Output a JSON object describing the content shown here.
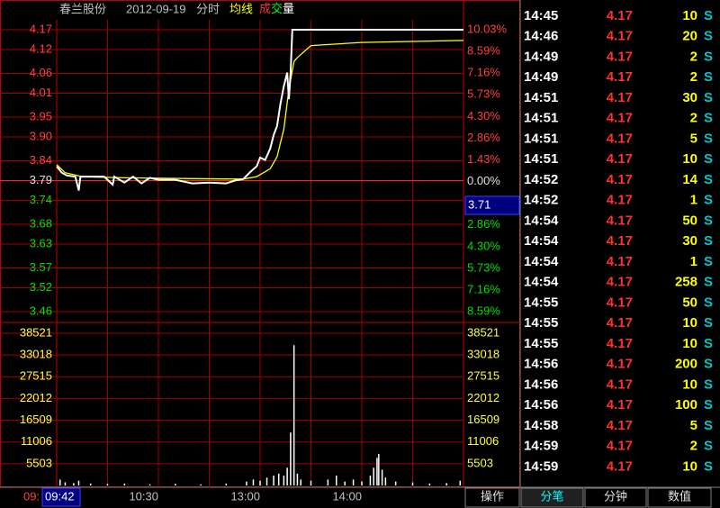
{
  "header": {
    "stock": "春兰股份",
    "date": "2012-09-19",
    "mode": "分时"
  },
  "chart_data": {
    "type": "intraday",
    "average": {
      "name": "均线",
      "color": "#ffff00",
      "x": [
        0,
        5,
        15,
        40,
        80,
        110,
        118,
        122,
        126,
        130,
        134,
        137,
        140,
        142,
        150,
        180,
        240
      ],
      "values": [
        3.83,
        3.81,
        3.8,
        3.797,
        3.795,
        3.794,
        3.8,
        3.81,
        3.82,
        3.85,
        3.92,
        4.02,
        4.09,
        4.1,
        4.13,
        4.138,
        4.143
      ]
    },
    "price": {
      "color": "#ffffff",
      "x": [
        0,
        3,
        6,
        11,
        13,
        14,
        20,
        28,
        33,
        34,
        40,
        45,
        50,
        55,
        60,
        70,
        80,
        90,
        100,
        105,
        110,
        115,
        118,
        120,
        123,
        126,
        128,
        130,
        132,
        134,
        136,
        137,
        138,
        139,
        240
      ],
      "values": [
        3.826,
        3.81,
        3.803,
        3.8,
        3.765,
        3.8,
        3.8,
        3.8,
        3.78,
        3.8,
        3.785,
        3.8,
        3.783,
        3.797,
        3.792,
        3.792,
        3.783,
        3.785,
        3.783,
        3.79,
        3.794,
        3.815,
        3.826,
        3.848,
        3.842,
        3.871,
        3.905,
        3.927,
        3.983,
        4.028,
        4.062,
        3.995,
        4.062,
        4.17,
        4.17
      ]
    },
    "volume_legend": [
      "成",
      "交",
      "量"
    ],
    "volume": {
      "color": "#ffffff",
      "x": [
        2,
        5,
        10,
        13,
        20,
        30,
        40,
        55,
        70,
        85,
        100,
        112,
        116,
        120,
        124,
        128,
        131,
        134,
        136,
        138,
        140,
        142,
        144,
        150,
        160,
        165,
        170,
        175,
        180,
        185,
        187,
        189,
        190,
        192,
        194,
        200,
        210,
        220,
        230,
        238
      ],
      "values": [
        1500,
        800,
        600,
        1200,
        500,
        400,
        500,
        300,
        400,
        300,
        500,
        1000,
        1500,
        1200,
        2000,
        2500,
        3000,
        2500,
        4500,
        13400,
        35500,
        3000,
        1500,
        1200,
        1500,
        2500,
        1000,
        1500,
        1000,
        2500,
        4500,
        7000,
        8000,
        4000,
        2000,
        1000,
        800,
        500,
        600,
        1200
      ]
    },
    "xlim": [
      0,
      240
    ],
    "xgrid": [
      30,
      60,
      90,
      120,
      150,
      180,
      210
    ],
    "xticks": [
      {
        "value": 0,
        "label": "09:"
      },
      {
        "value": 60,
        "label": "10:30"
      },
      {
        "value": 120,
        "label": "13:00"
      },
      {
        "value": 180,
        "label": "14:00"
      }
    ],
    "ylim": [
      3.46,
      4.17
    ],
    "yticks": [
      4.17,
      4.12,
      4.06,
      4.01,
      3.95,
      {
        "value": 3.9,
        "label": "3.90"
      },
      3.84,
      3.79,
      3.74,
      3.68,
      3.63,
      3.57,
      3.52,
      3.46
    ],
    "y2lim": [
      -8.59,
      10.03
    ],
    "y2ticks": [
      {
        "value": 10.03,
        "label": "10.03%"
      },
      {
        "value": 8.59,
        "label": "8.59%"
      },
      {
        "value": 7.16,
        "label": "7.16%"
      },
      {
        "value": 5.73,
        "label": "5.73%"
      },
      {
        "value": 4.3,
        "label": "4.30%"
      },
      {
        "value": 2.86,
        "label": "2.86%"
      },
      {
        "value": 1.43,
        "label": "1.43%"
      },
      {
        "value": 0,
        "label": "0.00%"
      },
      {
        "value": -2.86,
        "label": "2.86%"
      },
      {
        "value": -4.3,
        "label": "4.30%"
      },
      {
        "value": -5.73,
        "label": "5.73%"
      },
      {
        "value": -7.16,
        "label": "7.16%"
      },
      {
        "value": -8.59,
        "label": "8.59%"
      }
    ],
    "vlim": [
      0,
      38521
    ],
    "vticks": [
      38521,
      33018,
      27515,
      22012,
      16509,
      11006,
      5503
    ],
    "cursor": {
      "time": "09:42",
      "price": "3.71"
    }
  },
  "trades": {
    "rows": [
      [
        "14:45",
        "4.17",
        "10",
        "S"
      ],
      [
        "14:46",
        "4.17",
        "20",
        "S"
      ],
      [
        "14:49",
        "4.17",
        "2",
        "S"
      ],
      [
        "14:49",
        "4.17",
        "2",
        "S"
      ],
      [
        "14:51",
        "4.17",
        "30",
        "S"
      ],
      [
        "14:51",
        "4.17",
        "2",
        "S"
      ],
      [
        "14:51",
        "4.17",
        "5",
        "S"
      ],
      [
        "14:51",
        "4.17",
        "10",
        "S"
      ],
      [
        "14:52",
        "4.17",
        "14",
        "S"
      ],
      [
        "14:52",
        "4.17",
        "1",
        "S"
      ],
      [
        "14:54",
        "4.17",
        "50",
        "S"
      ],
      [
        "14:54",
        "4.17",
        "30",
        "S"
      ],
      [
        "14:54",
        "4.17",
        "1",
        "S"
      ],
      [
        "14:54",
        "4.17",
        "258",
        "S"
      ],
      [
        "14:55",
        "4.17",
        "50",
        "S"
      ],
      [
        "14:55",
        "4.17",
        "10",
        "S"
      ],
      [
        "14:55",
        "4.17",
        "10",
        "S"
      ],
      [
        "14:56",
        "4.17",
        "200",
        "S"
      ],
      [
        "14:56",
        "4.17",
        "10",
        "S"
      ],
      [
        "14:56",
        "4.17",
        "100",
        "S"
      ],
      [
        "14:58",
        "4.17",
        "5",
        "S"
      ],
      [
        "14:59",
        "4.17",
        "2",
        "S"
      ],
      [
        "14:59",
        "4.17",
        "10",
        "S"
      ]
    ]
  },
  "tabs": [
    "操作",
    "分笔",
    "分钟",
    "数值"
  ]
}
